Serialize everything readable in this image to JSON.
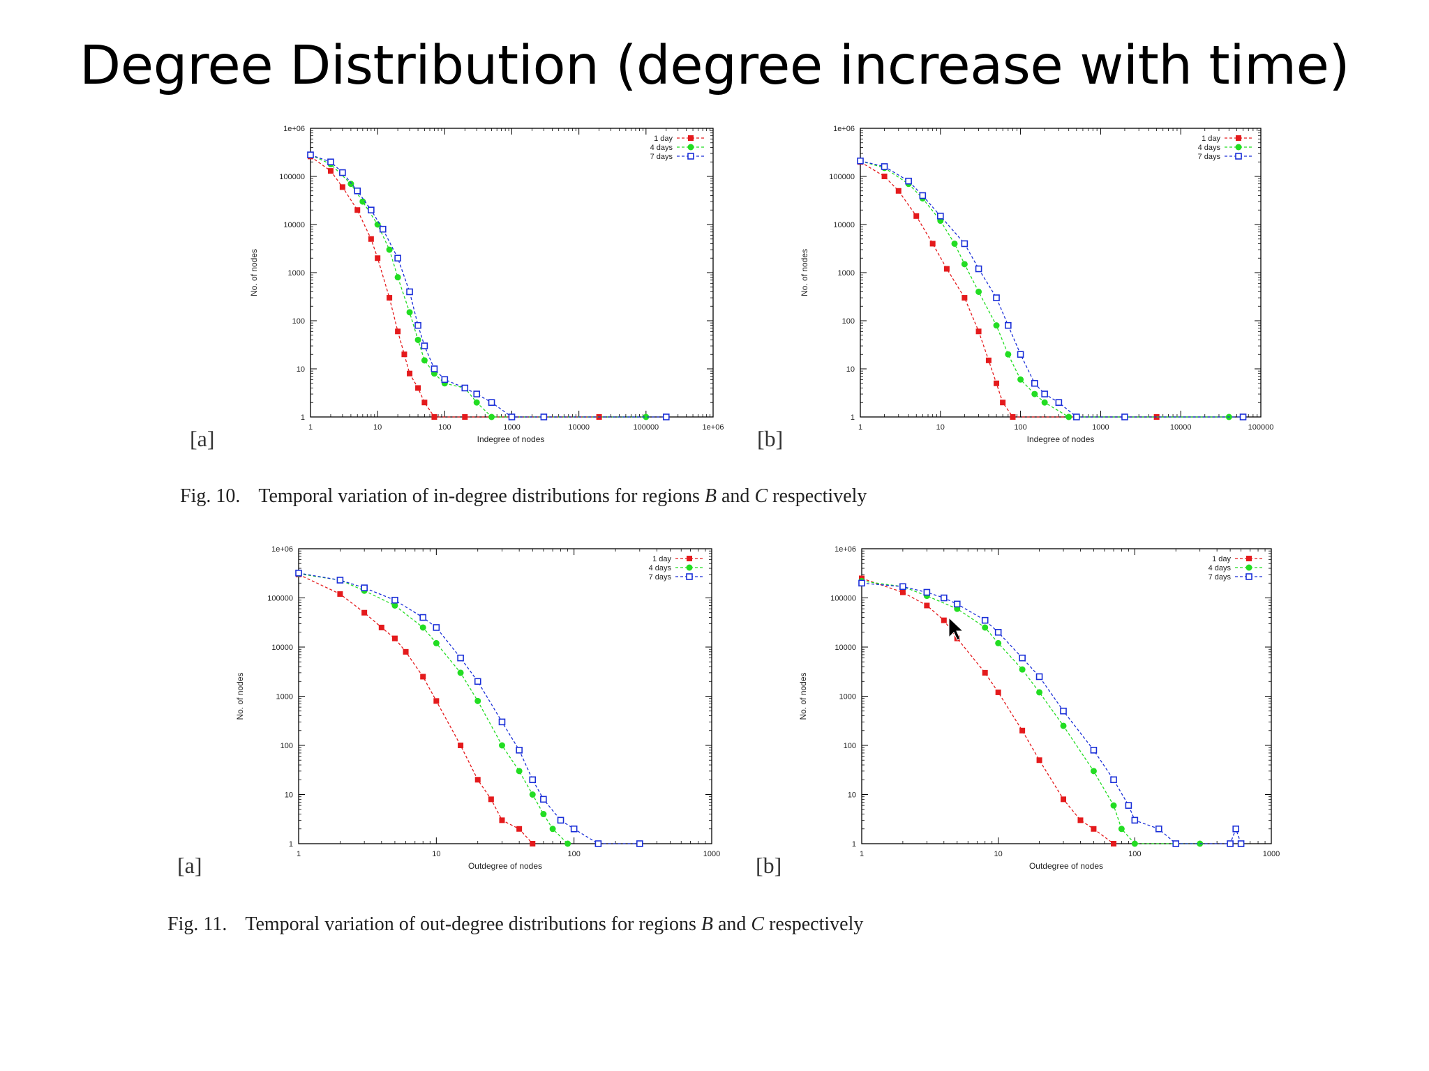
{
  "slide": {
    "title": "Degree Distribution (degree increase with time)"
  },
  "captions": [
    {
      "number": "Fig. 10.",
      "pre": "Temporal variation of in-degree distributions for regions",
      "r1": "B",
      "mid": "and",
      "r2": "C",
      "post": "respectively"
    },
    {
      "number": "Fig. 11.",
      "pre": "Temporal variation of out-degree distributions for regions",
      "r1": "B",
      "mid": "and",
      "r2": "C",
      "post": "respectively"
    }
  ],
  "colors": {
    "1 day": "#e41a1c",
    "4 days": "#22dd22",
    "7 days": "#1a2fd8"
  },
  "chart_data": [
    {
      "type": "scatter",
      "panel": "[a]",
      "figure": "Fig. 10",
      "xlabel": "Indegree of nodes",
      "ylabel": "No. of nodes",
      "x_scale": "log",
      "y_scale": "log",
      "xlim": [
        1,
        1000000
      ],
      "ylim": [
        1,
        1000000
      ],
      "x_ticks": [
        "1",
        "10",
        "100",
        "1000",
        "10000",
        "100000",
        "1e+06"
      ],
      "y_ticks": [
        "1",
        "10",
        "100",
        "1000",
        "10000",
        "100000",
        "1e+06"
      ],
      "legend": "top-right",
      "series": [
        {
          "name": "1 day",
          "marker": "filled-square",
          "points": [
            [
              1,
              260000
            ],
            [
              2,
              130000
            ],
            [
              3,
              60000
            ],
            [
              5,
              20000
            ],
            [
              8,
              5000
            ],
            [
              10,
              2000
            ],
            [
              15,
              300
            ],
            [
              20,
              60
            ],
            [
              25,
              20
            ],
            [
              30,
              8
            ],
            [
              40,
              4
            ],
            [
              50,
              2
            ],
            [
              70,
              1
            ],
            [
              200,
              1
            ],
            [
              20000,
              1
            ]
          ]
        },
        {
          "name": "4 days",
          "marker": "filled-circle",
          "points": [
            [
              1,
              280000
            ],
            [
              2,
              180000
            ],
            [
              4,
              70000
            ],
            [
              6,
              30000
            ],
            [
              10,
              10000
            ],
            [
              15,
              3000
            ],
            [
              20,
              800
            ],
            [
              30,
              150
            ],
            [
              40,
              40
            ],
            [
              50,
              15
            ],
            [
              70,
              8
            ],
            [
              100,
              5
            ],
            [
              200,
              4
            ],
            [
              300,
              2
            ],
            [
              500,
              1
            ],
            [
              100000,
              1
            ]
          ]
        },
        {
          "name": "7 days",
          "marker": "open-square",
          "points": [
            [
              1,
              280000
            ],
            [
              2,
              200000
            ],
            [
              3,
              120000
            ],
            [
              5,
              50000
            ],
            [
              8,
              20000
            ],
            [
              12,
              8000
            ],
            [
              20,
              2000
            ],
            [
              30,
              400
            ],
            [
              40,
              80
            ],
            [
              50,
              30
            ],
            [
              70,
              10
            ],
            [
              100,
              6
            ],
            [
              200,
              4
            ],
            [
              300,
              3
            ],
            [
              500,
              2
            ],
            [
              1000,
              1
            ],
            [
              3000,
              1
            ],
            [
              200000,
              1
            ]
          ]
        }
      ]
    },
    {
      "type": "scatter",
      "panel": "[b]",
      "figure": "Fig. 10",
      "xlabel": "Indegree of nodes",
      "ylabel": "No. of nodes",
      "x_scale": "log",
      "y_scale": "log",
      "xlim": [
        1,
        100000
      ],
      "ylim": [
        1,
        1000000
      ],
      "x_ticks": [
        "1",
        "10",
        "100",
        "1000",
        "10000",
        "100000"
      ],
      "y_ticks": [
        "1",
        "10",
        "100",
        "1000",
        "10000",
        "100000",
        "1e+06"
      ],
      "legend": "top-right",
      "series": [
        {
          "name": "1 day",
          "marker": "filled-square",
          "points": [
            [
              1,
              200000
            ],
            [
              2,
              100000
            ],
            [
              3,
              50000
            ],
            [
              5,
              15000
            ],
            [
              8,
              4000
            ],
            [
              12,
              1200
            ],
            [
              20,
              300
            ],
            [
              30,
              60
            ],
            [
              40,
              15
            ],
            [
              50,
              5
            ],
            [
              60,
              2
            ],
            [
              80,
              1
            ],
            [
              5000,
              1
            ]
          ]
        },
        {
          "name": "4 days",
          "marker": "filled-circle",
          "points": [
            [
              1,
              210000
            ],
            [
              2,
              150000
            ],
            [
              4,
              70000
            ],
            [
              6,
              35000
            ],
            [
              10,
              12000
            ],
            [
              15,
              4000
            ],
            [
              20,
              1500
            ],
            [
              30,
              400
            ],
            [
              50,
              80
            ],
            [
              70,
              20
            ],
            [
              100,
              6
            ],
            [
              150,
              3
            ],
            [
              200,
              2
            ],
            [
              400,
              1
            ],
            [
              40000,
              1
            ]
          ]
        },
        {
          "name": "7 days",
          "marker": "open-square",
          "points": [
            [
              1,
              210000
            ],
            [
              2,
              160000
            ],
            [
              4,
              80000
            ],
            [
              6,
              40000
            ],
            [
              10,
              15000
            ],
            [
              20,
              4000
            ],
            [
              30,
              1200
            ],
            [
              50,
              300
            ],
            [
              70,
              80
            ],
            [
              100,
              20
            ],
            [
              150,
              5
            ],
            [
              200,
              3
            ],
            [
              300,
              2
            ],
            [
              500,
              1
            ],
            [
              2000,
              1
            ],
            [
              60000,
              1
            ]
          ]
        }
      ]
    },
    {
      "type": "scatter",
      "panel": "[a]",
      "figure": "Fig. 11",
      "xlabel": "Outdegree of nodes",
      "ylabel": "No. of nodes",
      "x_scale": "log",
      "y_scale": "log",
      "xlim": [
        1,
        1000
      ],
      "ylim": [
        1,
        1000000
      ],
      "x_ticks": [
        "1",
        "10",
        "100",
        "1000"
      ],
      "y_ticks": [
        "1",
        "10",
        "100",
        "1000",
        "10000",
        "100000",
        "1e+06"
      ],
      "legend": "top-right",
      "series": [
        {
          "name": "1 day",
          "marker": "filled-square",
          "points": [
            [
              1,
              300000
            ],
            [
              2,
              120000
            ],
            [
              3,
              50000
            ],
            [
              4,
              25000
            ],
            [
              5,
              15000
            ],
            [
              6,
              8000
            ],
            [
              8,
              2500
            ],
            [
              10,
              800
            ],
            [
              15,
              100
            ],
            [
              20,
              20
            ],
            [
              25,
              8
            ],
            [
              30,
              3
            ],
            [
              40,
              2
            ],
            [
              50,
              1
            ]
          ]
        },
        {
          "name": "4 days",
          "marker": "filled-circle",
          "points": [
            [
              1,
              310000
            ],
            [
              2,
              230000
            ],
            [
              3,
              140000
            ],
            [
              5,
              70000
            ],
            [
              8,
              25000
            ],
            [
              10,
              12000
            ],
            [
              15,
              3000
            ],
            [
              20,
              800
            ],
            [
              30,
              100
            ],
            [
              40,
              30
            ],
            [
              50,
              10
            ],
            [
              60,
              4
            ],
            [
              70,
              2
            ],
            [
              90,
              1
            ]
          ]
        },
        {
          "name": "7 days",
          "marker": "open-square",
          "points": [
            [
              1,
              320000
            ],
            [
              2,
              230000
            ],
            [
              3,
              160000
            ],
            [
              5,
              90000
            ],
            [
              8,
              40000
            ],
            [
              10,
              25000
            ],
            [
              15,
              6000
            ],
            [
              20,
              2000
            ],
            [
              30,
              300
            ],
            [
              40,
              80
            ],
            [
              50,
              20
            ],
            [
              60,
              8
            ],
            [
              80,
              3
            ],
            [
              100,
              2
            ],
            [
              150,
              1
            ],
            [
              300,
              1
            ]
          ]
        }
      ]
    },
    {
      "type": "scatter",
      "panel": "[b]",
      "figure": "Fig. 11",
      "xlabel": "Outdegree of nodes",
      "ylabel": "No. of nodes",
      "x_scale": "log",
      "y_scale": "log",
      "xlim": [
        1,
        1000
      ],
      "ylim": [
        1,
        1000000
      ],
      "x_ticks": [
        "1",
        "10",
        "100",
        "1000"
      ],
      "y_ticks": [
        "1",
        "10",
        "100",
        "1000",
        "10000",
        "100000",
        "1e+06"
      ],
      "legend": "top-right",
      "series": [
        {
          "name": "1 day",
          "marker": "filled-square",
          "points": [
            [
              1,
              250000
            ],
            [
              2,
              130000
            ],
            [
              3,
              70000
            ],
            [
              4,
              35000
            ],
            [
              5,
              15000
            ],
            [
              8,
              3000
            ],
            [
              10,
              1200
            ],
            [
              15,
              200
            ],
            [
              20,
              50
            ],
            [
              30,
              8
            ],
            [
              40,
              3
            ],
            [
              50,
              2
            ],
            [
              70,
              1
            ]
          ]
        },
        {
          "name": "4 days",
          "marker": "filled-circle",
          "points": [
            [
              1,
              220000
            ],
            [
              2,
              170000
            ],
            [
              3,
              110000
            ],
            [
              5,
              60000
            ],
            [
              8,
              25000
            ],
            [
              10,
              12000
            ],
            [
              15,
              3500
            ],
            [
              20,
              1200
            ],
            [
              30,
              250
            ],
            [
              50,
              30
            ],
            [
              70,
              6
            ],
            [
              80,
              2
            ],
            [
              100,
              1
            ],
            [
              300,
              1
            ]
          ]
        },
        {
          "name": "7 days",
          "marker": "open-square",
          "points": [
            [
              1,
              200000
            ],
            [
              2,
              170000
            ],
            [
              3,
              130000
            ],
            [
              4,
              100000
            ],
            [
              5,
              75000
            ],
            [
              8,
              35000
            ],
            [
              10,
              20000
            ],
            [
              15,
              6000
            ],
            [
              20,
              2500
            ],
            [
              30,
              500
            ],
            [
              50,
              80
            ],
            [
              70,
              20
            ],
            [
              90,
              6
            ],
            [
              100,
              3
            ],
            [
              150,
              2
            ],
            [
              200,
              1
            ],
            [
              500,
              1
            ],
            [
              550,
              2
            ],
            [
              600,
              1
            ]
          ]
        }
      ]
    }
  ]
}
